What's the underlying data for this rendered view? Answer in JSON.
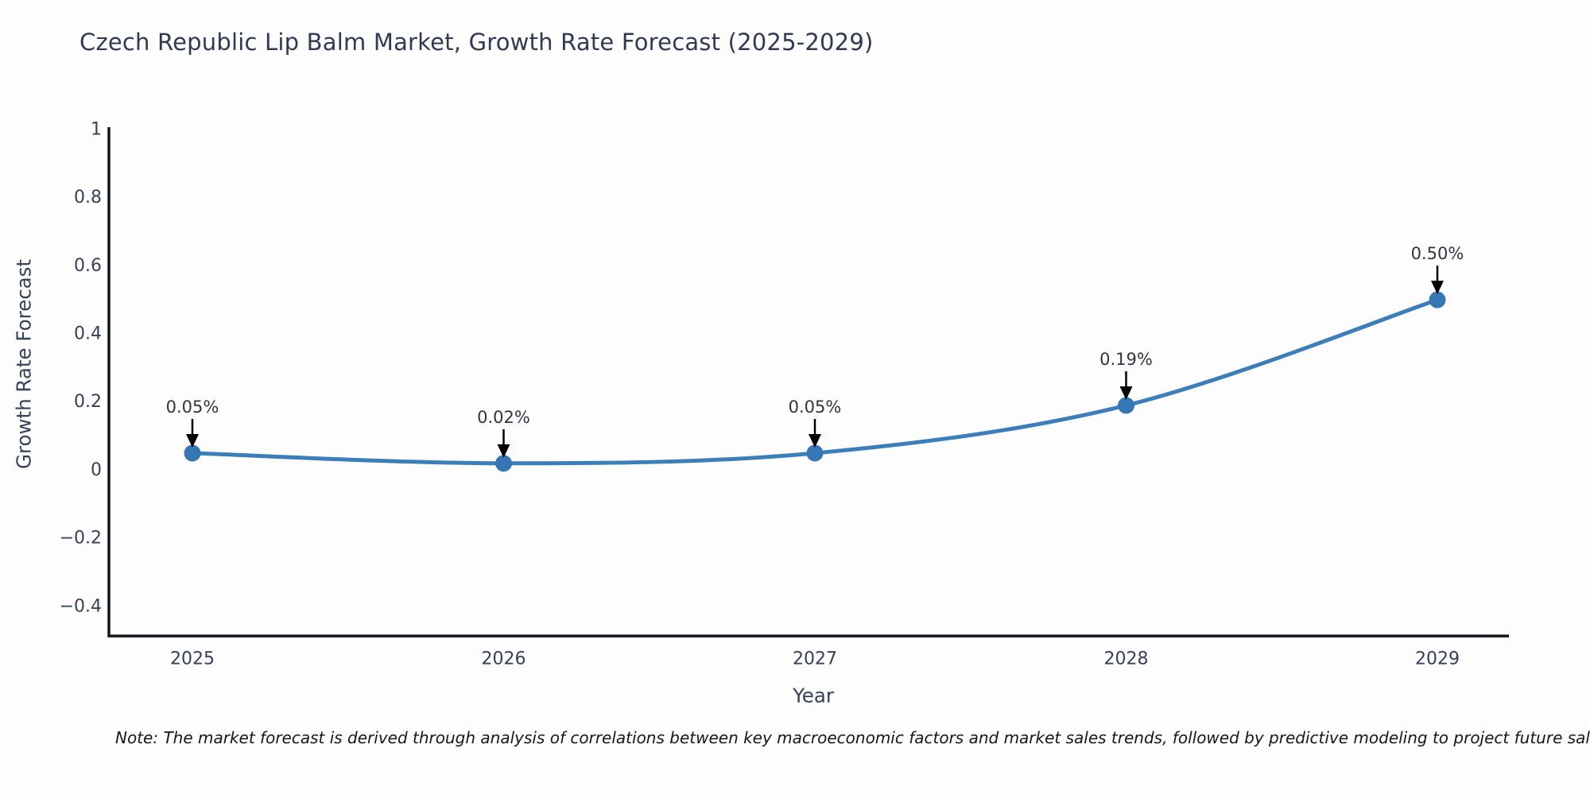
{
  "chart_data": {
    "type": "line",
    "title": "Czech Republic Lip Balm Market, Growth Rate Forecast (2025-2029)",
    "xlabel": "Year",
    "ylabel": "Growth Rate Forecast",
    "note": "Note: The market forecast is derived through analysis of correlations between key macroeconomic factors and market sales trends, followed by predictive modeling to project future sales",
    "x": [
      "2025",
      "2026",
      "2027",
      "2028",
      "2029"
    ],
    "series": [
      {
        "name": "Growth Rate Forecast",
        "values": [
          0.05,
          0.02,
          0.05,
          0.19,
          0.5
        ],
        "point_labels": [
          "0.05%",
          "0.02%",
          "0.05%",
          "0.19%",
          "0.50%"
        ]
      }
    ],
    "ylim": [
      -0.49,
      1.01
    ],
    "yticks": [
      1,
      0.8,
      0.6,
      0.4,
      0.2,
      0,
      -0.2,
      -0.4
    ],
    "ytick_labels": [
      "1",
      "0.8",
      "0.6",
      "0.4",
      "0.2",
      "0",
      "−0.2",
      "−0.4"
    ],
    "grid": false,
    "legend": "none",
    "marker_style": "circle",
    "annotation_arrows": "down",
    "colors": {
      "line": "#3c7eba",
      "marker": "#3577b5",
      "arrow": "#000000",
      "axis": "#11151c",
      "tick_text": "#36415a",
      "title": "#2f3b52",
      "annotation": "#2f3640",
      "note": "#15171c",
      "background": "#fdfdfe"
    }
  }
}
